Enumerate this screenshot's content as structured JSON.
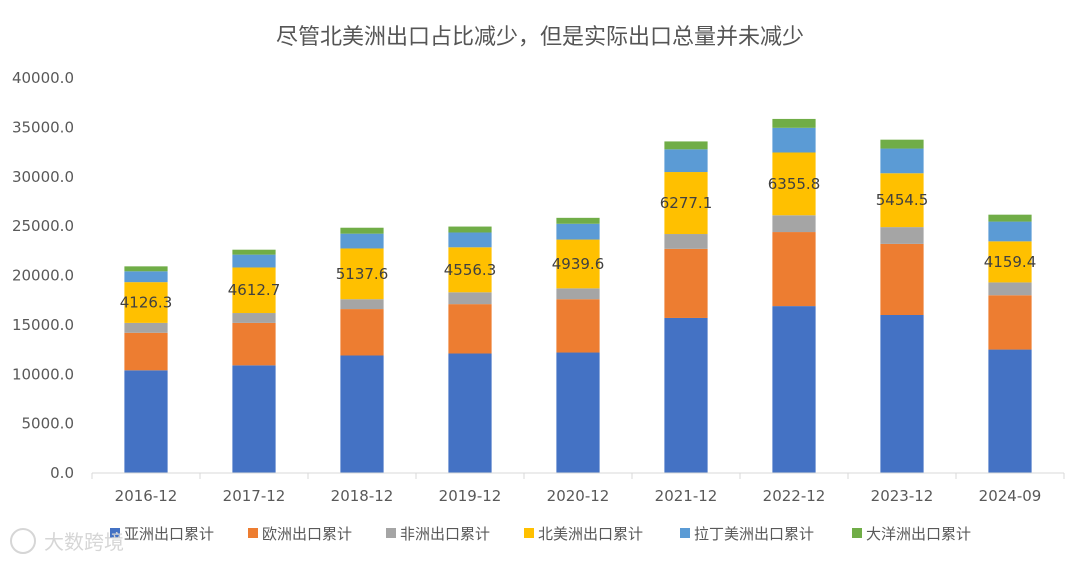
{
  "chart_data": {
    "type": "bar",
    "stacked": true,
    "title": "尽管北美洲出口占比减少，但是实际出口总量并未减少",
    "categories": [
      "2016-12",
      "2017-12",
      "2018-12",
      "2019-12",
      "2020-12",
      "2021-12",
      "2022-12",
      "2023-12",
      "2024-09"
    ],
    "ylim": [
      0,
      40000
    ],
    "yticks": [
      "0.0",
      "5000.0",
      "10000.0",
      "15000.0",
      "20000.0",
      "25000.0",
      "30000.0",
      "35000.0",
      "40000.0"
    ],
    "ytick_values": [
      0,
      5000,
      10000,
      15000,
      20000,
      25000,
      30000,
      35000,
      40000
    ],
    "legend_position": "bottom",
    "grid": false,
    "series": [
      {
        "name": "亚洲出口累计",
        "color": "#4472C4",
        "values": [
          10400,
          10900,
          11900,
          12100,
          12200,
          15700,
          16900,
          16000,
          12500
        ]
      },
      {
        "name": "欧洲出口累计",
        "color": "#ED7D31",
        "values": [
          3800,
          4300,
          4700,
          5000,
          5400,
          7000,
          7500,
          7200,
          5500
        ]
      },
      {
        "name": "非洲出口累计",
        "color": "#A5A5A5",
        "values": [
          1000,
          1000,
          1000,
          1200,
          1100,
          1500,
          1700,
          1700,
          1300
        ]
      },
      {
        "name": "北美洲出口累计",
        "color": "#FFC000",
        "values": [
          4126.3,
          4612.7,
          5137.6,
          4556.3,
          4939.6,
          6277.1,
          6355.8,
          5454.5,
          4159.4
        ],
        "labels": [
          "4126.3",
          "4612.7",
          "5137.6",
          "4556.3",
          "4939.6",
          "6277.1",
          "6355.8",
          "5454.5",
          "4159.4"
        ]
      },
      {
        "name": "拉丁美洲出口累计",
        "color": "#5B9BD5",
        "values": [
          1100,
          1300,
          1500,
          1500,
          1600,
          2300,
          2500,
          2500,
          2000
        ]
      },
      {
        "name": "大洋洲出口累计",
        "color": "#70AD47",
        "values": [
          500,
          500,
          600,
          600,
          600,
          800,
          900,
          900,
          700
        ]
      }
    ]
  },
  "watermark": {
    "text": "大数跨境"
  }
}
